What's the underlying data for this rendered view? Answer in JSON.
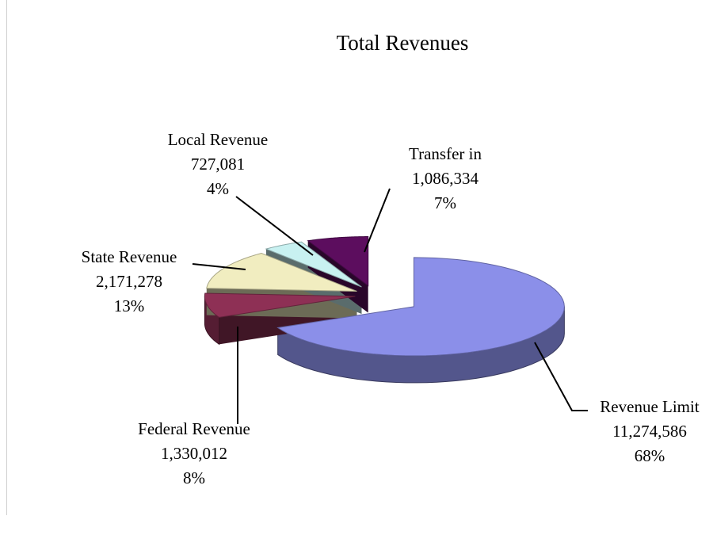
{
  "chart_data": {
    "type": "pie",
    "title": "Total Revenues",
    "categories": [
      "Revenue Limit",
      "Federal Revenue",
      "State Revenue",
      "Local Revenue",
      "Transfer in"
    ],
    "values": [
      11274586,
      1330012,
      2171278,
      727081,
      1086334
    ],
    "value_labels": [
      "11,274,586",
      "1,330,012",
      "2,171,278",
      "727,081",
      "1,086,334"
    ],
    "percents": [
      68,
      8,
      13,
      4,
      7
    ],
    "percent_labels": [
      "68%",
      "8%",
      "13%",
      "4%",
      "7%"
    ],
    "colors": [
      "#8b8fe9",
      "#8e3055",
      "#f1edc0",
      "#c8f1f1",
      "#5c0d5e"
    ]
  }
}
